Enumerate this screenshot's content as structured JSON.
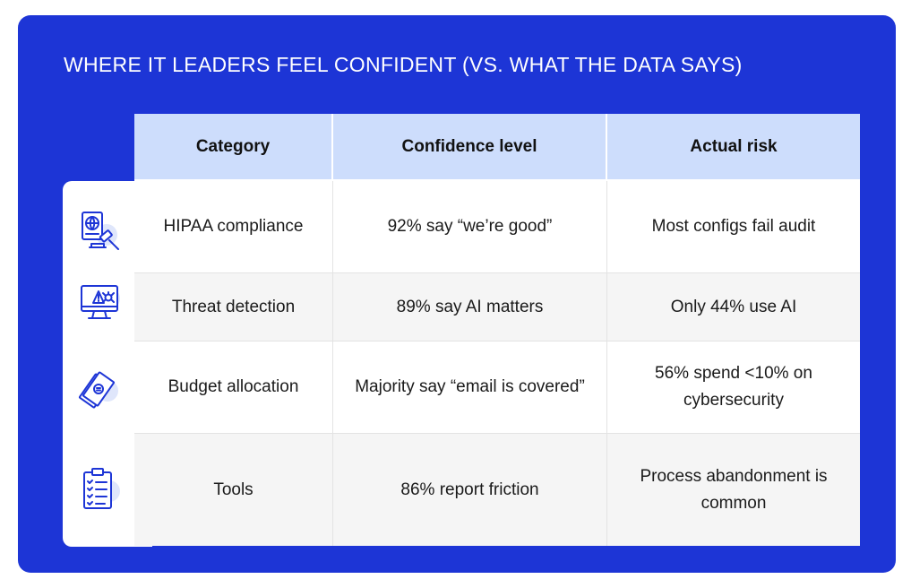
{
  "title": "WHERE IT LEADERS FEEL CONFIDENT (VS. WHAT THE DATA SAYS)",
  "colors": {
    "background": "#1d35d6",
    "header_fill": "#cdddfc",
    "icon_stroke": "#1d35d6",
    "icon_accent": "#dfe6fb"
  },
  "table": {
    "columns": [
      "Category",
      "Confidence level",
      "Actual risk"
    ],
    "rows": [
      {
        "category": "HIPAA compliance",
        "confidence": "92% say “we’re good”",
        "risk": "Most configs fail audit",
        "icon": "legal-document-gavel-icon"
      },
      {
        "category": "Threat detection",
        "confidence": "89% say AI matters",
        "risk": "Only 44% use AI",
        "icon": "monitor-alert-bug-icon"
      },
      {
        "category": "Budget allocation",
        "confidence": "Majority say “email is covered”",
        "risk": "56% spend <10% on cybersecurity",
        "icon": "money-banknotes-icon"
      },
      {
        "category": "Tools",
        "confidence": "86% report friction",
        "risk": "Process abandonment is common",
        "icon": "clipboard-checklist-icon"
      }
    ]
  }
}
